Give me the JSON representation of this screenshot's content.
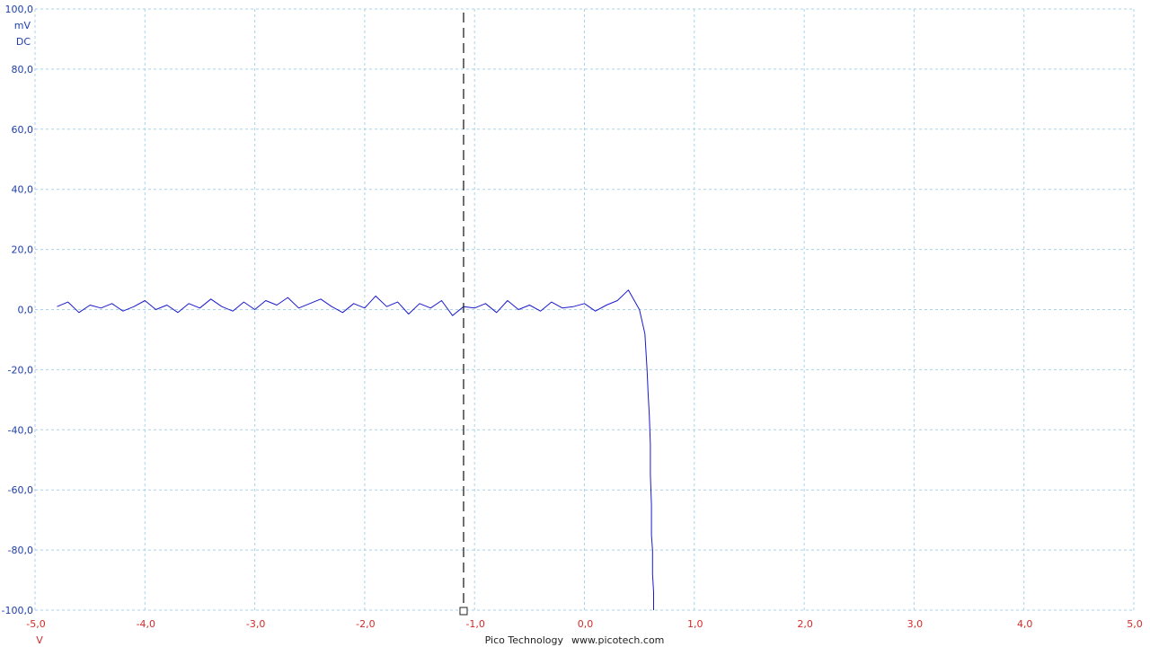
{
  "colors": {
    "trace": "#1a1acc",
    "grid": "#a9d3e8",
    "y_axis_text": "#1f3ea8",
    "x_axis_text": "#d42a2a",
    "ruler": "#222222"
  },
  "y_axis": {
    "ticks": [
      "100,0",
      "80,0",
      "60,0",
      "40,0",
      "20,0",
      "0,0",
      "-20,0",
      "-40,0",
      "-60,0",
      "-80,0",
      "-100,0"
    ],
    "unit": "mV",
    "coupling": "DC"
  },
  "x_axis": {
    "ticks": [
      "-5,0",
      "-4,0",
      "-3,0",
      "-2,0",
      "-1,0",
      "0,0",
      "1,0",
      "2,0",
      "3,0",
      "4,0",
      "5,0"
    ],
    "unit": "V"
  },
  "footer": {
    "brand": "Pico Technology",
    "url": "www.picotech.com"
  },
  "ruler": {
    "x_value": -1.1
  },
  "chart_data": {
    "type": "line",
    "title": "",
    "xlabel": "V",
    "ylabel": "mV",
    "xlim": [
      -5.0,
      5.0
    ],
    "ylim": [
      -100.0,
      100.0
    ],
    "grid": true,
    "x": [
      -4.8,
      -4.7,
      -4.6,
      -4.5,
      -4.4,
      -4.3,
      -4.2,
      -4.1,
      -4.0,
      -3.9,
      -3.8,
      -3.7,
      -3.6,
      -3.5,
      -3.4,
      -3.3,
      -3.2,
      -3.1,
      -3.0,
      -2.9,
      -2.8,
      -2.7,
      -2.6,
      -2.5,
      -2.4,
      -2.3,
      -2.2,
      -2.1,
      -2.0,
      -1.9,
      -1.8,
      -1.7,
      -1.6,
      -1.5,
      -1.4,
      -1.3,
      -1.2,
      -1.1,
      -1.0,
      -0.9,
      -0.8,
      -0.7,
      -0.6,
      -0.5,
      -0.4,
      -0.3,
      -0.2,
      -0.1,
      0.0,
      0.1,
      0.2,
      0.3,
      0.4,
      0.5,
      0.55,
      0.57,
      0.58,
      0.59,
      0.6,
      0.6,
      0.61,
      0.61,
      0.62,
      0.62,
      0.63,
      0.63
    ],
    "series": [
      {
        "values": [
          1.0,
          2.5,
          -1.0,
          1.5,
          0.5,
          2.0,
          -0.5,
          1.0,
          3.0,
          0.0,
          1.5,
          -1.0,
          2.0,
          0.5,
          3.5,
          1.0,
          -0.5,
          2.5,
          0.0,
          3.0,
          1.5,
          4.0,
          0.5,
          2.0,
          3.5,
          1.0,
          -1.0,
          2.0,
          0.5,
          4.5,
          1.0,
          2.5,
          -1.5,
          2.0,
          0.5,
          3.0,
          -2.0,
          1.0,
          0.5,
          2.0,
          -1.0,
          3.0,
          0.0,
          1.5,
          -0.5,
          2.5,
          0.5,
          1.0,
          2.0,
          -0.5,
          1.5,
          3.0,
          6.5,
          0.0,
          -8.0,
          -20.0,
          -28.0,
          -35.0,
          -45.0,
          -55.0,
          -65.0,
          -75.0,
          -80.0,
          -88.0,
          -94.0,
          -100.0
        ]
      }
    ]
  }
}
